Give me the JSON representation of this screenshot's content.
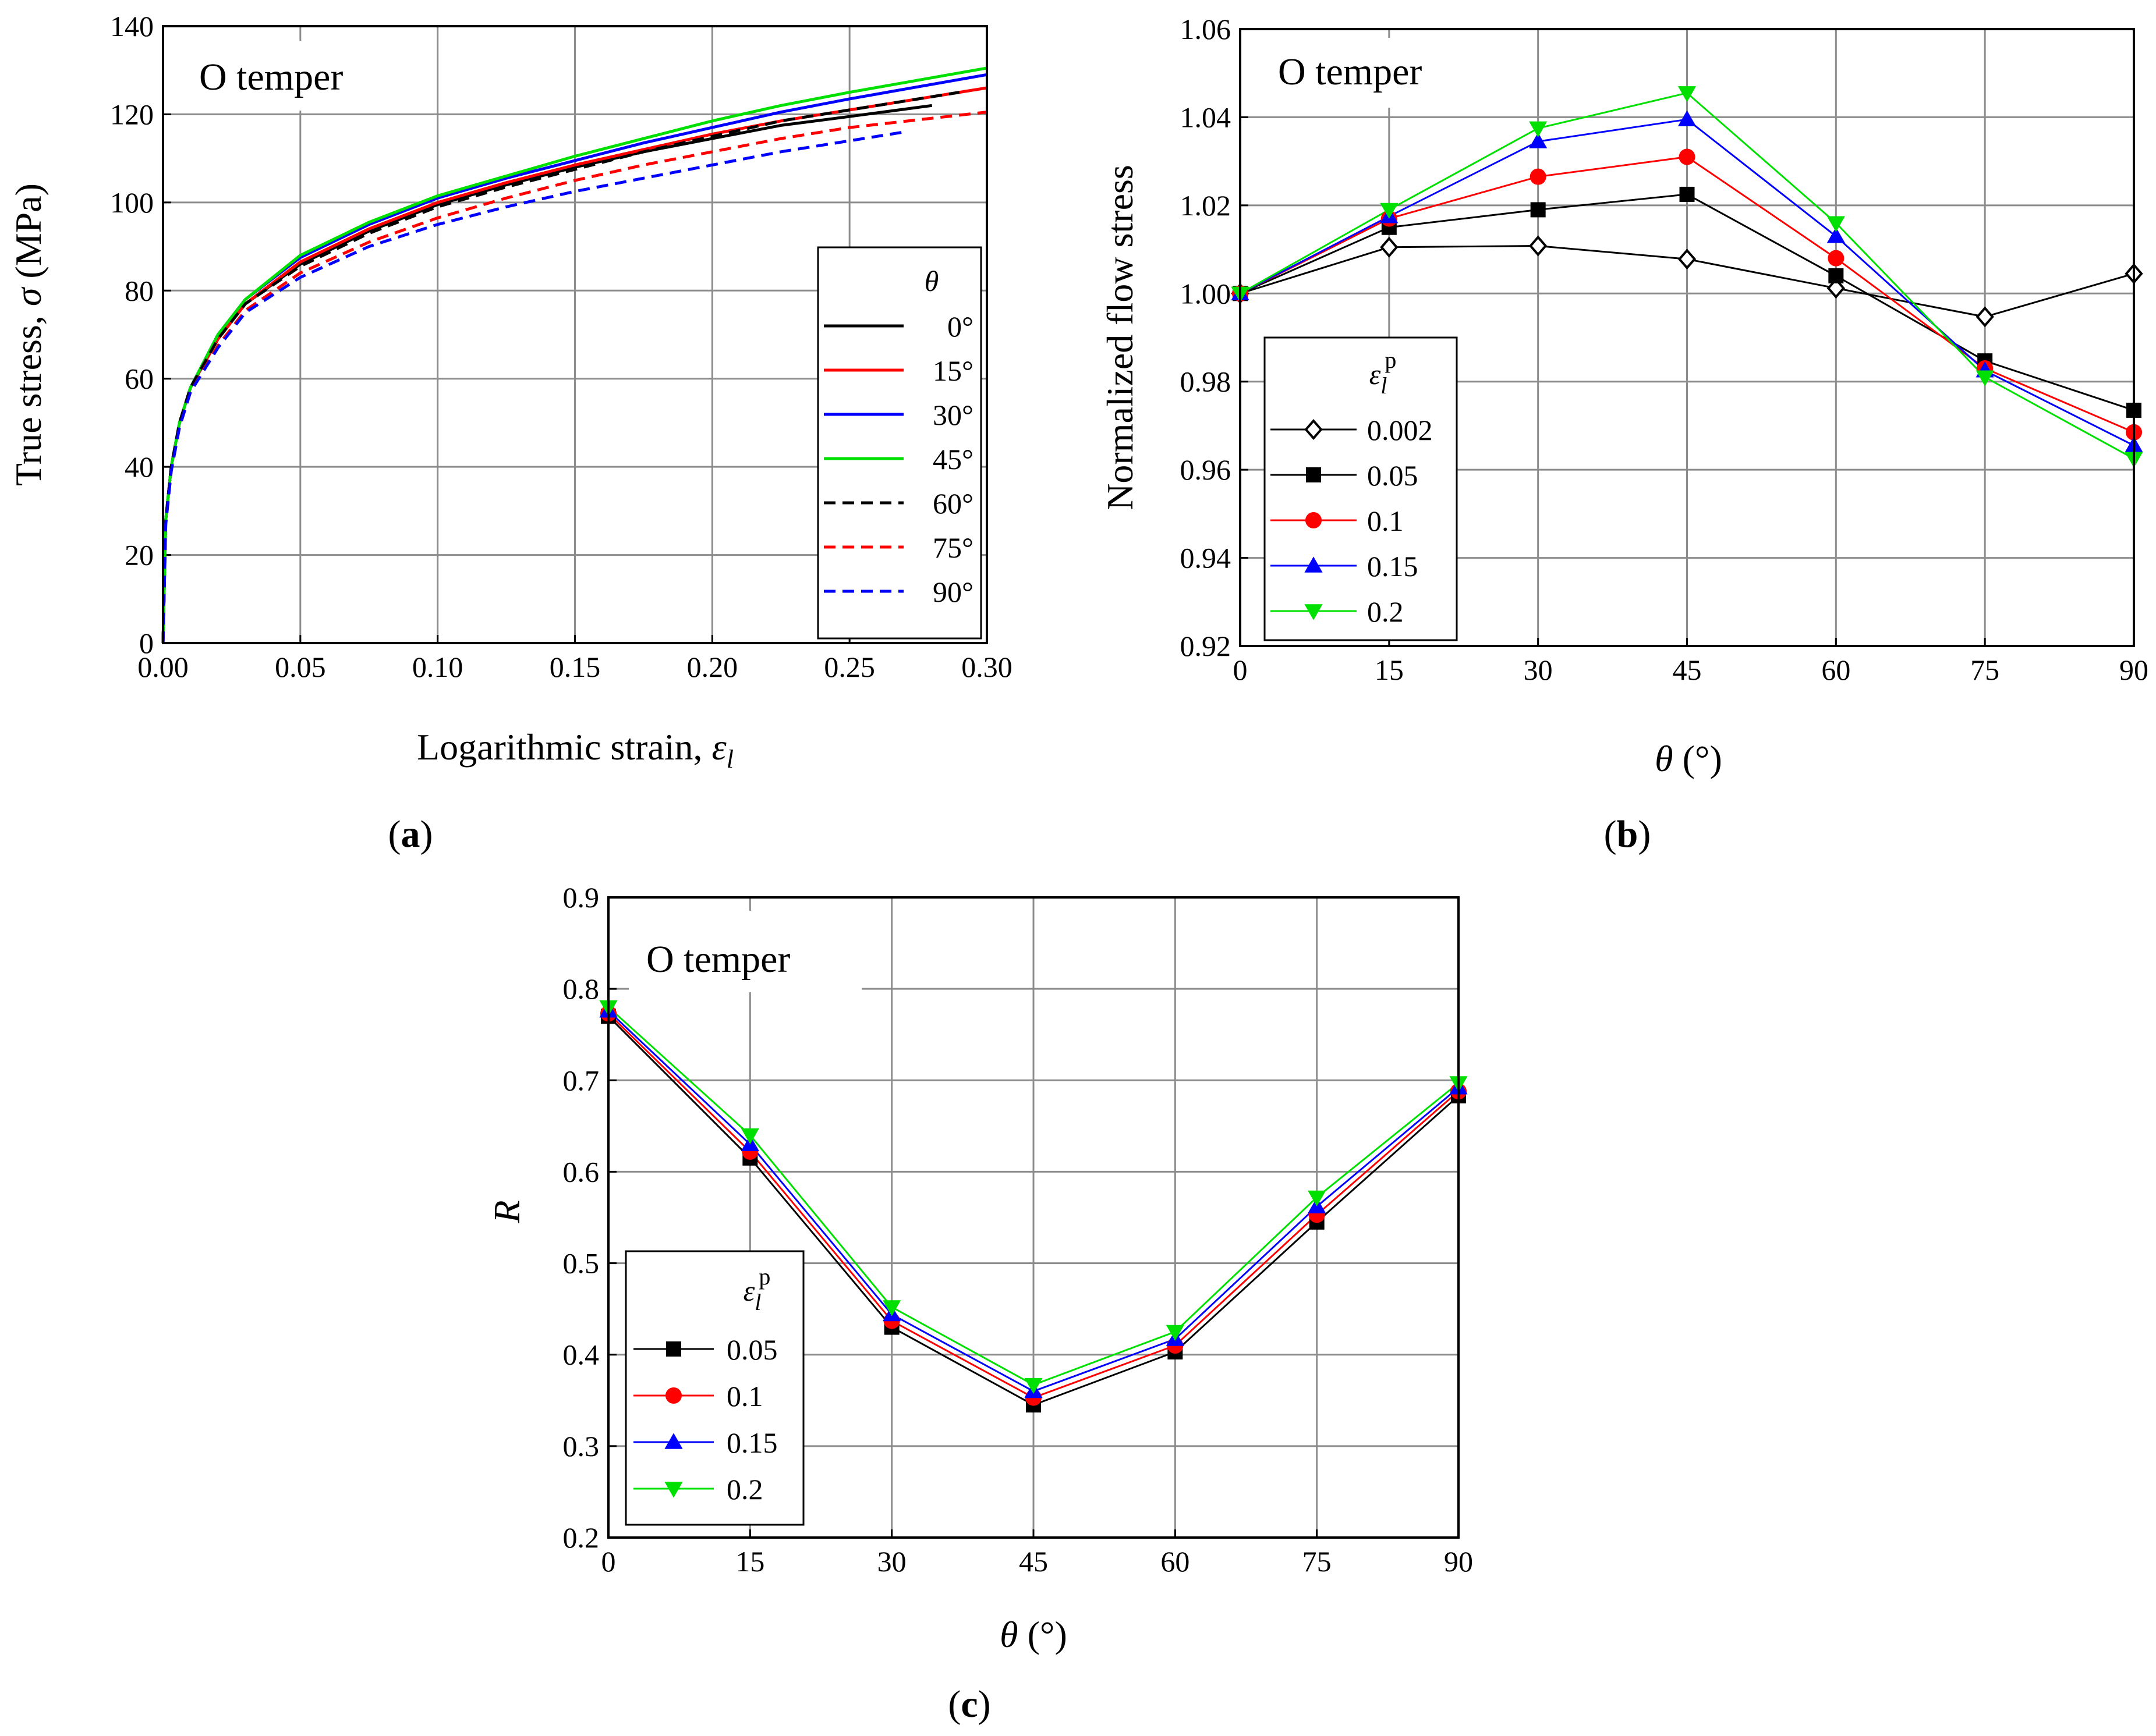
{
  "chart_data": [
    {
      "panel": "a",
      "type": "line",
      "panel_label": "a",
      "annotation": "O temper",
      "xlabel": "Logarithmic strain, ",
      "xlabel_symbol": "ε",
      "xlabel_sub": "l",
      "ylabel": "True stress, ",
      "ylabel_symbol": "σ",
      "ylabel_unit": " (MPa)",
      "xlim": [
        0,
        0.3
      ],
      "ylim": [
        0,
        140
      ],
      "xticks": [
        "0.00",
        "0.05",
        "0.10",
        "0.15",
        "0.20",
        "0.25",
        "0.30"
      ],
      "yticks": [
        "0",
        "20",
        "40",
        "60",
        "80",
        "100",
        "120",
        "140"
      ],
      "legend_title": "θ",
      "legend_position": "center-right",
      "grid": true,
      "series": [
        {
          "name": "0°",
          "color": "#000000",
          "dash": "solid",
          "x": [
            0,
            0.001,
            0.003,
            0.006,
            0.01,
            0.02,
            0.03,
            0.05,
            0.075,
            0.1,
            0.125,
            0.15,
            0.175,
            0.2,
            0.225,
            0.25,
            0.28
          ],
          "y": [
            0,
            28,
            40,
            50,
            58,
            69,
            77,
            86,
            93.5,
            99.5,
            104,
            108,
            111.5,
            114.5,
            117.5,
            119.5,
            122
          ]
        },
        {
          "name": "15°",
          "color": "#ff0000",
          "dash": "solid",
          "x": [
            0,
            0.001,
            0.003,
            0.006,
            0.01,
            0.02,
            0.03,
            0.05,
            0.075,
            0.1,
            0.125,
            0.15,
            0.175,
            0.2,
            0.225,
            0.25,
            0.3
          ],
          "y": [
            0,
            28,
            40,
            50,
            58,
            69,
            77,
            86.5,
            94,
            100,
            104.5,
            108.5,
            112,
            115.5,
            118.5,
            121,
            126
          ]
        },
        {
          "name": "30°",
          "color": "#0000ff",
          "dash": "solid",
          "x": [
            0,
            0.001,
            0.003,
            0.006,
            0.01,
            0.02,
            0.03,
            0.05,
            0.075,
            0.1,
            0.125,
            0.15,
            0.175,
            0.2,
            0.225,
            0.25,
            0.3
          ],
          "y": [
            0,
            28,
            40,
            50,
            58,
            70,
            78,
            87.5,
            95,
            101,
            105.5,
            109.5,
            113.5,
            117,
            120.5,
            123.5,
            129
          ]
        },
        {
          "name": "45°",
          "color": "#00e000",
          "dash": "solid",
          "x": [
            0,
            0.001,
            0.003,
            0.006,
            0.01,
            0.02,
            0.03,
            0.05,
            0.075,
            0.1,
            0.125,
            0.15,
            0.175,
            0.2,
            0.225,
            0.25,
            0.3
          ],
          "y": [
            0,
            28,
            40,
            50,
            58,
            70,
            78,
            88,
            95.5,
            101.5,
            106,
            110.5,
            114.5,
            118.5,
            122,
            125,
            130.5
          ]
        },
        {
          "name": "60°",
          "color": "#000000",
          "dash": "dashed",
          "x": [
            0,
            0.001,
            0.003,
            0.006,
            0.01,
            0.02,
            0.03,
            0.05,
            0.075,
            0.1,
            0.125,
            0.15,
            0.175,
            0.2,
            0.225,
            0.25,
            0.29
          ],
          "y": [
            0,
            28,
            40,
            50,
            58,
            69,
            77,
            85.5,
            93,
            99,
            103.5,
            107.5,
            111.5,
            115,
            118.5,
            121,
            125
          ]
        },
        {
          "name": "75°",
          "color": "#ff0000",
          "dash": "dashed",
          "x": [
            0,
            0.001,
            0.003,
            0.006,
            0.01,
            0.02,
            0.03,
            0.05,
            0.075,
            0.1,
            0.125,
            0.15,
            0.175,
            0.2,
            0.225,
            0.25,
            0.3
          ],
          "y": [
            0,
            27,
            39,
            49,
            57,
            67.5,
            75.5,
            84,
            91,
            96.5,
            101,
            105,
            108.5,
            111.5,
            114.5,
            117,
            120.5
          ]
        },
        {
          "name": "90°",
          "color": "#0000ff",
          "dash": "dashed",
          "x": [
            0,
            0.001,
            0.003,
            0.006,
            0.01,
            0.02,
            0.03,
            0.05,
            0.075,
            0.1,
            0.125,
            0.15,
            0.175,
            0.2,
            0.225,
            0.25,
            0.27
          ],
          "y": [
            0,
            27,
            39,
            49,
            57,
            67,
            75,
            83,
            90,
            95,
            99,
            102.5,
            105.5,
            108.5,
            111.5,
            114,
            116
          ]
        }
      ]
    },
    {
      "panel": "b",
      "type": "line",
      "panel_label": "b",
      "annotation": "O temper",
      "xlabel_symbol": "θ",
      "xlabel_unit": " (°)",
      "ylabel": "Normalized flow stress",
      "xlim": [
        0,
        90
      ],
      "ylim": [
        0.92,
        1.06
      ],
      "xticks": [
        "0",
        "15",
        "30",
        "45",
        "60",
        "75",
        "90"
      ],
      "yticks": [
        "0.92",
        "0.94",
        "0.96",
        "0.98",
        "1.00",
        "1.02",
        "1.04",
        "1.06"
      ],
      "legend_title_symbol": "ε",
      "legend_title_sub": "l",
      "legend_title_sup": "p",
      "legend_position": "lower-left",
      "grid": true,
      "x": [
        0,
        15,
        30,
        45,
        60,
        75,
        90
      ],
      "series": [
        {
          "name": "0.002",
          "color": "#000000",
          "marker": "diamond-open",
          "values": [
            1.0,
            1.0105,
            1.0108,
            1.0078,
            1.0012,
            0.9947,
            1.0045
          ]
        },
        {
          "name": "0.05",
          "color": "#000000",
          "marker": "square",
          "values": [
            1.0,
            1.015,
            1.019,
            1.0225,
            1.004,
            0.9847,
            0.9735
          ]
        },
        {
          "name": "0.1",
          "color": "#ff0000",
          "marker": "circle",
          "values": [
            1.0,
            1.017,
            1.0265,
            1.031,
            1.008,
            0.983,
            0.9685
          ]
        },
        {
          "name": "0.15",
          "color": "#0000ff",
          "marker": "triangle-up",
          "values": [
            1.0,
            1.0175,
            1.0345,
            1.0395,
            1.013,
            0.9825,
            0.9655
          ]
        },
        {
          "name": "0.2",
          "color": "#00e000",
          "marker": "triangle-down",
          "values": [
            1.0,
            1.019,
            1.0375,
            1.0455,
            1.016,
            0.981,
            0.9625
          ]
        }
      ]
    },
    {
      "panel": "c",
      "type": "line",
      "panel_label": "c",
      "annotation": "O temper",
      "xlabel_symbol": "θ",
      "xlabel_unit": " (°)",
      "ylabel": "R",
      "xlim": [
        0,
        90
      ],
      "ylim": [
        0.2,
        0.9
      ],
      "xticks": [
        "0",
        "15",
        "30",
        "45",
        "60",
        "75",
        "90"
      ],
      "yticks": [
        "0.2",
        "0.3",
        "0.4",
        "0.5",
        "0.6",
        "0.7",
        "0.8",
        "0.9"
      ],
      "legend_title_symbol": "ε",
      "legend_title_sub": "l",
      "legend_title_sup": "p",
      "legend_position": "lower-left",
      "grid": true,
      "x": [
        0,
        15,
        30,
        45,
        60,
        75,
        90
      ],
      "series": [
        {
          "name": "0.05",
          "color": "#000000",
          "marker": "square",
          "values": [
            0.77,
            0.615,
            0.43,
            0.345,
            0.403,
            0.545,
            0.683
          ]
        },
        {
          "name": "0.1",
          "color": "#ff0000",
          "marker": "circle",
          "values": [
            0.773,
            0.622,
            0.437,
            0.353,
            0.41,
            0.553,
            0.688
          ]
        },
        {
          "name": "0.15",
          "color": "#0000ff",
          "marker": "triangle-up",
          "values": [
            0.776,
            0.63,
            0.444,
            0.36,
            0.417,
            0.562,
            0.692
          ]
        },
        {
          "name": "0.2",
          "color": "#00e000",
          "marker": "triangle-down",
          "values": [
            0.78,
            0.64,
            0.452,
            0.367,
            0.425,
            0.572,
            0.697
          ]
        }
      ]
    }
  ]
}
